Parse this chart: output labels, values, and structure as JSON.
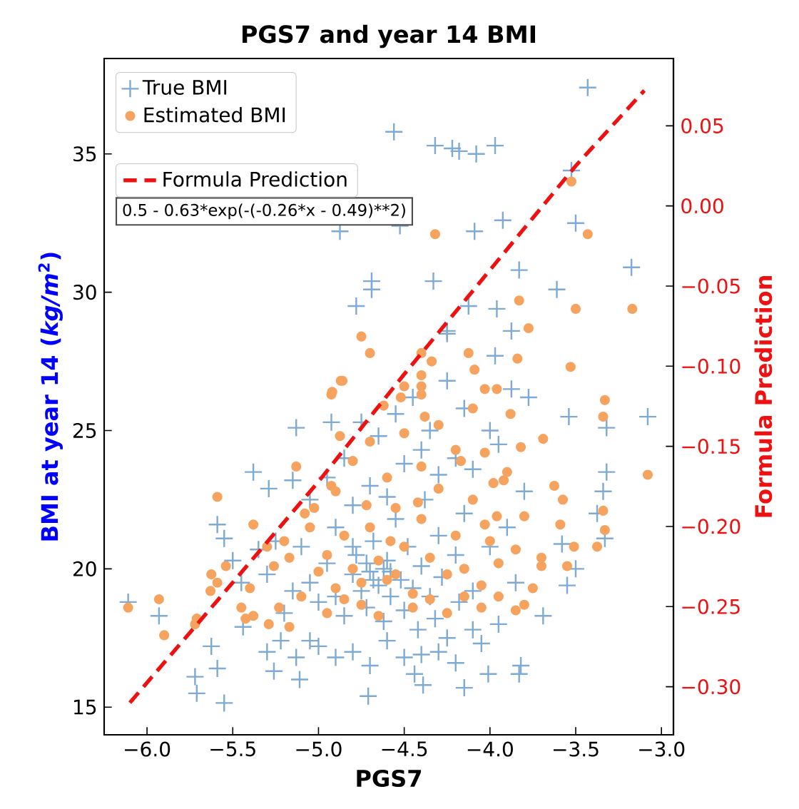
{
  "chart_data": {
    "type": "scatter",
    "title": "PGS7 and year 14 BMI",
    "xlabel": "PGS7",
    "ylabel": "BMI at year 14 (*kg/m*$^{2}$)",
    "y2label": "Formula Prediction",
    "xlim": [
      -6.25,
      -2.93
    ],
    "ylim": [
      14.0,
      38.45
    ],
    "y2lim": [
      -0.33,
      0.092
    ],
    "xticks": [
      {
        "value": -6.0,
        "label": "−6.0"
      },
      {
        "value": -5.5,
        "label": "−5.5"
      },
      {
        "value": -5.0,
        "label": "−5.0"
      },
      {
        "value": -4.5,
        "label": "−4.5"
      },
      {
        "value": -4.0,
        "label": "−4.0"
      },
      {
        "value": -3.5,
        "label": "−3.5"
      },
      {
        "value": -3.0,
        "label": "−3.0"
      }
    ],
    "yticks": [
      15,
      20,
      25,
      30,
      35
    ],
    "y2ticks": [
      {
        "value": -0.3,
        "label": "−0.30"
      },
      {
        "value": -0.25,
        "label": "−0.25"
      },
      {
        "value": -0.2,
        "label": "−0.20"
      },
      {
        "value": -0.15,
        "label": "−0.15"
      },
      {
        "value": -0.1,
        "label": "−0.10"
      },
      {
        "value": -0.05,
        "label": "−0.05"
      },
      {
        "value": 0.0,
        "label": "0.00"
      },
      {
        "value": 0.05,
        "label": "0.05"
      }
    ],
    "legend": "top left",
    "grid": false,
    "annotations": [
      "0.5 - 0.63*exp(-(-0.26*x - 0.49)**2)"
    ],
    "series": [
      {
        "name": "True BMI",
        "marker": "cross",
        "color": "#7eaad4",
        "x": [
          -3.43,
          -3.97,
          -4.08,
          -4.56,
          -4.32,
          -4.22,
          -4.18,
          -4.875,
          -4.525,
          -4.69,
          -4.69,
          -4.78,
          -4.33,
          -4.25,
          -3.925,
          -4.09,
          -3.525,
          -3.5,
          -3.175,
          -3.61,
          -3.83,
          -4.125,
          -3.96,
          -4.25,
          -3.875,
          -3.97,
          -3.875,
          -3.775,
          -3.08,
          -3.32,
          -3.54,
          -3.32,
          -3.34,
          -3.375,
          -3.33,
          -3.58,
          -3.5,
          -3.55,
          -3.69,
          -3.82,
          -3.83,
          -4.01,
          -4.15,
          -6.11,
          -5.93,
          -5.625,
          -5.72,
          -5.71,
          -5.55,
          -5.59,
          -5.59,
          -5.55,
          -5.38,
          -5.29,
          -5.15,
          -5.13,
          -4.925,
          -4.71,
          -4.44,
          -4.39,
          -5.3,
          -5.13,
          -5.11,
          -5.26,
          -5.22,
          -5.05,
          -5.44,
          -5.05,
          -5.0,
          -4.95,
          -4.9,
          -4.85,
          -4.8,
          -4.78,
          -4.75,
          -4.72,
          -4.7,
          -4.68,
          -4.65,
          -4.62,
          -4.6,
          -4.58,
          -4.55,
          -4.52,
          -4.5,
          -4.48,
          -4.45,
          -4.42,
          -4.4,
          -4.38,
          -4.35,
          -4.32,
          -4.3,
          -4.28,
          -4.25,
          -4.2,
          -4.18,
          -4.15,
          -4.1,
          -4.05,
          -4.0,
          -3.95,
          -3.9,
          -3.85,
          -3.8,
          -4.9,
          -4.8,
          -4.7,
          -4.6,
          -4.5,
          -4.4,
          -4.3,
          -4.2,
          -4.1,
          -4.0,
          -4.65,
          -4.55,
          -4.45,
          -4.35,
          -4.25,
          -4.15,
          -3.95,
          -5.1,
          -5.15,
          -5.2,
          -5.3,
          -5.35,
          -5.0,
          -4.9,
          -4.8,
          -4.7,
          -4.6,
          -4.5,
          -4.4,
          -4.3,
          -4.2,
          -4.1,
          -5.45,
          -5.5,
          -5.05,
          -4.95,
          -4.85,
          -4.75,
          -5.25,
          -4.62,
          -4.72,
          -4.8,
          -4.58,
          -4.68
        ],
        "values": [
          37.4,
          35.3,
          35.0,
          35.8,
          35.3,
          35.2,
          35.1,
          32.2,
          32.4,
          30.4,
          30.1,
          29.5,
          30.4,
          28.6,
          32.6,
          32.2,
          34.4,
          32.5,
          30.9,
          30.1,
          30.8,
          29.5,
          29.4,
          28.5,
          28.6,
          27.7,
          26.5,
          26.2,
          25.5,
          25.1,
          25.5,
          23.5,
          22.8,
          22.0,
          21.1,
          20.9,
          20.0,
          19.4,
          18.3,
          16.5,
          16.2,
          16.2,
          15.7,
          18.8,
          18.3,
          17.2,
          16.1,
          15.5,
          15.15,
          16.4,
          21.6,
          21.1,
          23.5,
          22.9,
          23.2,
          25.1,
          25.3,
          15.4,
          16.2,
          15.8,
          17.0,
          16.8,
          16.0,
          16.3,
          17.4,
          17.4,
          17.9,
          19.5,
          18.8,
          20.2,
          19.0,
          18.3,
          19.8,
          20.5,
          19.2,
          18.6,
          19.9,
          21.0,
          19.4,
          18.1,
          20.3,
          19.0,
          21.8,
          19.6,
          18.5,
          20.8,
          19.3,
          17.8,
          20.1,
          22.5,
          19.0,
          18.2,
          21.2,
          19.7,
          17.5,
          20.5,
          18.8,
          22.0,
          19.2,
          17.3,
          20.8,
          18.0,
          21.5,
          19.5,
          22.8,
          21.5,
          22.3,
          23.0,
          22.6,
          23.8,
          24.3,
          23.4,
          24.0,
          23.6,
          25.0,
          24.8,
          25.6,
          26.2,
          25.0,
          26.8,
          25.8,
          24.5,
          20.8,
          19.2,
          18.4,
          19.8,
          20.7,
          17.2,
          16.8,
          17.0,
          16.5,
          17.4,
          16.8,
          16.9,
          17.0,
          16.6,
          17.8,
          19.5,
          20.3,
          22.5,
          23.3,
          24.0,
          25.3,
          21.0,
          20.0,
          20.2,
          20.8,
          19.9,
          19.6
        ]
      },
      {
        "name": "Estimated BMI",
        "marker": "circle",
        "color": "#f5a35e",
        "x": [
          -4.32,
          -3.525,
          -3.43,
          -3.83,
          -3.5,
          -3.17,
          -3.775,
          -4.125,
          -3.84,
          -4.09,
          -3.53,
          -4.03,
          -3.96,
          -3.33,
          -4.75,
          -4.7,
          -4.4,
          -4.34,
          -4.4,
          -4.4,
          -4.4,
          -4.87,
          -4.925,
          -4.52,
          -3.34,
          -3.88,
          -3.82,
          -3.69,
          -4.03,
          -4.17,
          -3.625,
          -3.575,
          -3.59,
          -3.34,
          -3.33,
          -3.375,
          -3.51,
          -3.55,
          -3.7,
          -3.8,
          -3.08,
          -3.98,
          -3.92,
          -3.96,
          -4.03,
          -6.11,
          -5.93,
          -5.9,
          -5.71,
          -5.72,
          -5.63,
          -5.625,
          -5.59,
          -5.54,
          -5.59,
          -5.38,
          -5.425,
          -5.38,
          -5.29,
          -5.26,
          -5.17,
          -5.13,
          -5.08,
          -5.025,
          -4.925,
          -4.875,
          -4.92,
          -4.86,
          -5.23,
          -5.17,
          -5.0,
          -4.95,
          -4.9,
          -4.85,
          -4.8,
          -4.75,
          -4.7,
          -4.65,
          -4.6,
          -4.55,
          -4.5,
          -4.45,
          -4.4,
          -4.35,
          -4.3,
          -4.25,
          -4.2,
          -4.15,
          -4.1,
          -4.05,
          -4.0,
          -3.95,
          -3.9,
          -3.85,
          -3.8,
          -3.75,
          -3.7,
          -4.9,
          -4.8,
          -4.7,
          -4.6,
          -4.5,
          -4.4,
          -4.3,
          -4.2,
          -4.1,
          -4.62,
          -4.5,
          -4.38,
          -5.1,
          -5.05,
          -4.95,
          -4.85,
          -4.75,
          -4.65,
          -4.55,
          -4.45,
          -4.35,
          -4.25,
          -4.15,
          -4.05,
          -3.95,
          -3.85,
          -5.2,
          -5.3,
          -5.4,
          -5.45,
          -4.72,
          -4.58,
          -4.42
        ],
        "values": [
          32.1,
          34.0,
          32.1,
          29.7,
          29.4,
          29.4,
          28.7,
          27.8,
          27.6,
          27.2,
          27.3,
          26.5,
          26.5,
          26.1,
          28.4,
          27.8,
          27.8,
          27.5,
          27.0,
          26.6,
          26.3,
          26.8,
          26.3,
          26.2,
          25.5,
          25.6,
          24.4,
          24.7,
          24.2,
          23.9,
          23.0,
          22.5,
          21.6,
          22.1,
          21.4,
          20.8,
          20.8,
          20.1,
          20.4,
          18.7,
          23.4,
          23.1,
          23.2,
          21.9,
          21.6,
          18.6,
          18.9,
          17.6,
          18.2,
          18.0,
          19.2,
          19.8,
          19.5,
          20.1,
          22.6,
          21.6,
          18.2,
          18.3,
          18.0,
          20.1,
          20.4,
          23.7,
          22.0,
          22.2,
          23.0,
          24.8,
          26.4,
          26.8,
          18.6,
          17.9,
          19.9,
          20.5,
          19.3,
          21.2,
          20.0,
          18.7,
          21.5,
          20.3,
          19.6,
          22.2,
          20.8,
          19.1,
          21.8,
          20.4,
          22.9,
          19.8,
          21.2,
          20.0,
          22.5,
          19.4,
          21.0,
          20.2,
          23.5,
          20.7,
          21.9,
          19.3,
          20.1,
          22.8,
          23.9,
          24.6,
          23.3,
          24.9,
          23.7,
          25.2,
          24.3,
          25.8,
          25.9,
          26.6,
          25.5,
          19.0,
          21.5,
          18.4,
          18.9,
          19.5,
          18.3,
          19.8,
          18.6,
          18.9,
          18.4,
          19.0,
          18.6,
          19.0,
          18.5,
          21.0,
          20.8,
          19.3,
          18.6,
          22.3,
          21.0,
          22.4
        ]
      },
      {
        "name": "Formula Prediction",
        "type": "line",
        "axis": "y2",
        "marker": "none",
        "line_style": "dashed",
        "color": "#ee1111",
        "x": [
          -6.1,
          -5.5,
          -5.0,
          -4.5,
          -4.0,
          -3.5,
          -3.1
        ],
        "values": [
          -0.31,
          -0.235,
          -0.172,
          -0.105,
          -0.04,
          0.025,
          0.072
        ]
      }
    ]
  }
}
